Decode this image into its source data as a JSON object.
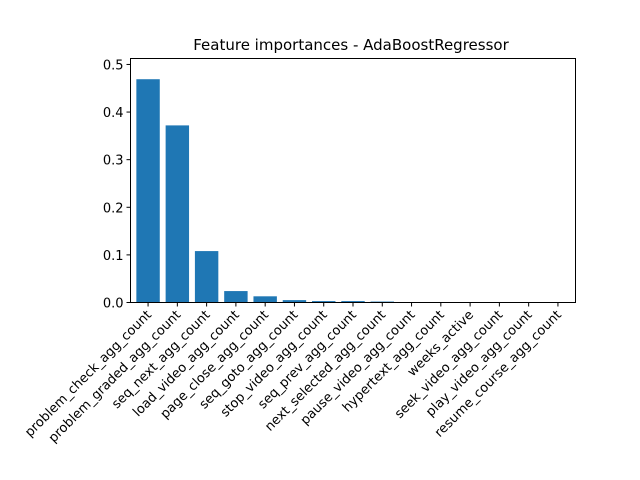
{
  "chart_data": {
    "type": "bar",
    "title": "Feature importances - AdaBoostRegressor",
    "xlabel": "",
    "ylabel": "",
    "categories": [
      "problem_check_agg_count",
      "problem_graded_agg_count",
      "seq_next_agg_count",
      "load_video_agg_count",
      "page_close_agg_count",
      "seq_goto_agg_count",
      "stop_video_agg_count",
      "seq_prev_agg_count",
      "next_selected_agg_count",
      "pause_video_agg_count",
      "hypertext_agg_count",
      "weeks_active",
      "seek_video_agg_count",
      "play_video_agg_count",
      "resume_course_agg_count"
    ],
    "values": [
      0.469,
      0.372,
      0.108,
      0.024,
      0.013,
      0.005,
      0.003,
      0.003,
      0.002,
      0.001,
      0.0005,
      0.0003,
      0.0002,
      0.0001,
      0.0001
    ],
    "ylim": [
      0,
      0.5125
    ],
    "yticks": [
      0.0,
      0.1,
      0.2,
      0.3,
      0.4,
      0.5
    ],
    "ytick_labels": [
      "0.0",
      "0.1",
      "0.2",
      "0.3",
      "0.4",
      "0.5"
    ],
    "bar_color": "#1f77b4",
    "grid": false,
    "legend": "none"
  }
}
